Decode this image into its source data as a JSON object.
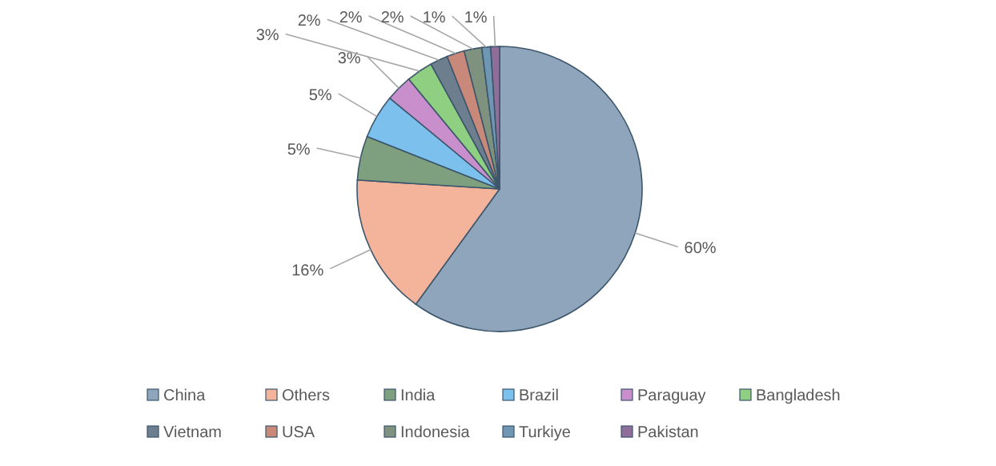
{
  "chart_data": {
    "type": "pie",
    "categories": [
      "China",
      "Others",
      "India",
      "Brazil",
      "Paraguay",
      "Bangladesh",
      "Vietnam",
      "USA",
      "Indonesia",
      "Turkiye",
      "Pakistan"
    ],
    "values": [
      60,
      16,
      5,
      5,
      3,
      3,
      2,
      2,
      2,
      1,
      1
    ],
    "value_labels": [
      "60%",
      "16%",
      "5%",
      "5%",
      "3%",
      "3%",
      "2%",
      "2%",
      "2%",
      "1%",
      "1%"
    ],
    "colors": [
      "#8ea5bb",
      "#f4b49c",
      "#7fa07f",
      "#7cc0ee",
      "#c98fcc",
      "#8fcf82",
      "#6d7f8e",
      "#c9897a",
      "#7f927f",
      "#6f97b3",
      "#8f6f9a"
    ],
    "legend": "bottom"
  }
}
